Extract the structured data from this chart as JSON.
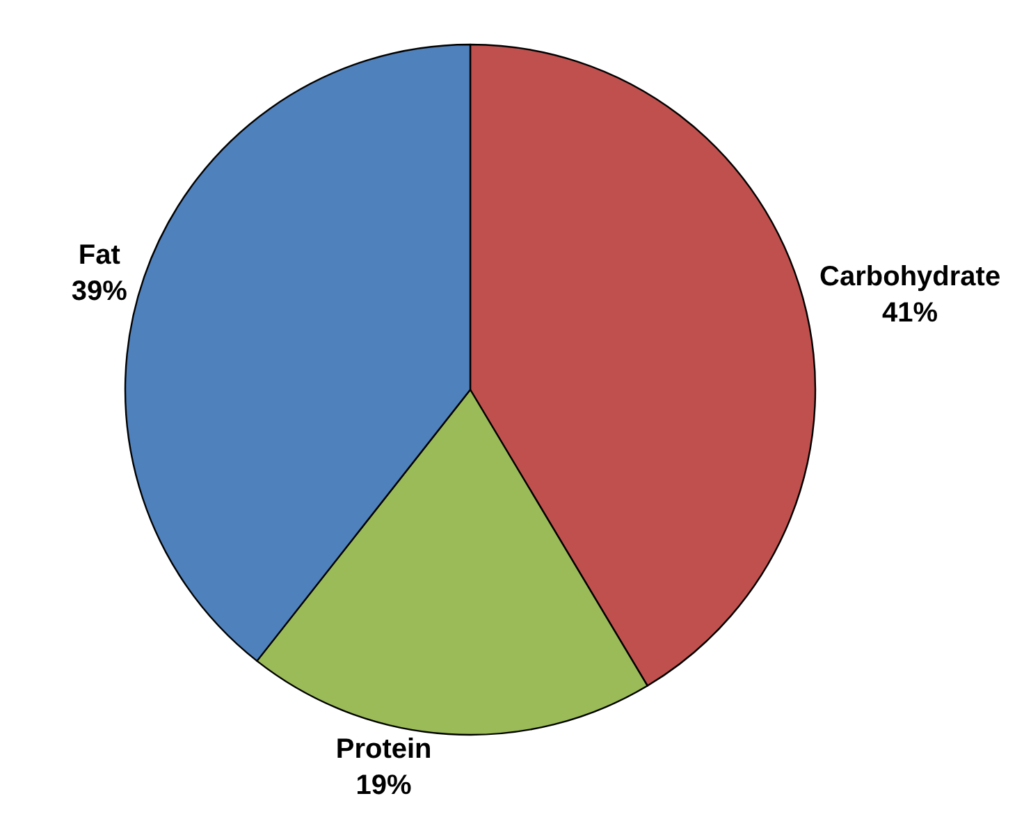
{
  "chart_data": {
    "type": "pie",
    "categories": [
      "Carbohydrate",
      "Protein",
      "Fat"
    ],
    "values": [
      41,
      19,
      39
    ],
    "value_labels": [
      "41%",
      "19%",
      "39%"
    ],
    "colors": [
      "#c0504d",
      "#9bbb59",
      "#4f81bd"
    ],
    "legend": false
  }
}
